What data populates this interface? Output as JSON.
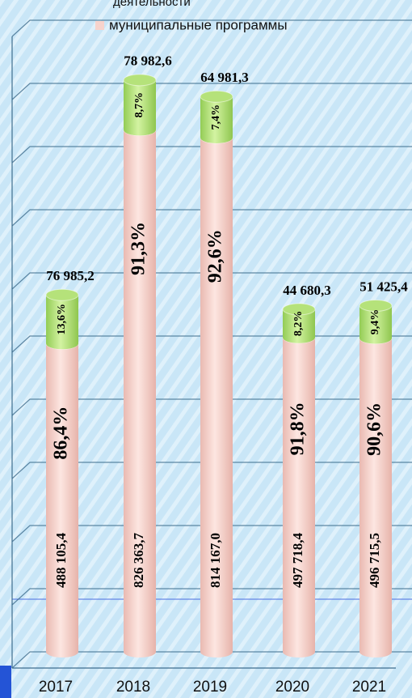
{
  "chart_data": {
    "type": "stacked-cylinder",
    "categories": [
      "2017",
      "2018",
      "2019",
      "2020",
      "2021"
    ],
    "series": [
      {
        "name": "муниципальные программы",
        "color": "#f7d3cc",
        "values": [
          488105.4,
          826363.7,
          814167.0,
          497718.4,
          496715.5
        ],
        "value_labels": [
          "488 105,4",
          "826 363,7",
          "814 167,0",
          "497 718,4",
          "496 715,5"
        ],
        "percent_labels": [
          "86,4%",
          "91,3%",
          "92,6%",
          "91,8%",
          "90,6%"
        ]
      },
      {
        "name": "деятельности",
        "color": "#b5e27a",
        "values": [
          76985.2,
          78982.6,
          64981.3,
          44680.3,
          51425.4
        ],
        "value_labels": [
          "76 985,2",
          "78 982,6",
          "64 981,3",
          "44 680,3",
          "51 425,4"
        ],
        "percent_labels": [
          "13,6%",
          "8,7%",
          "7,4%",
          "8,2%",
          "9,4%"
        ]
      }
    ],
    "ylim": [
      0,
      1000000
    ],
    "yticks": [
      0,
      100000,
      200000,
      300000,
      400000,
      500000,
      600000,
      700000,
      800000,
      900000,
      1000000
    ],
    "grid": true
  }
}
